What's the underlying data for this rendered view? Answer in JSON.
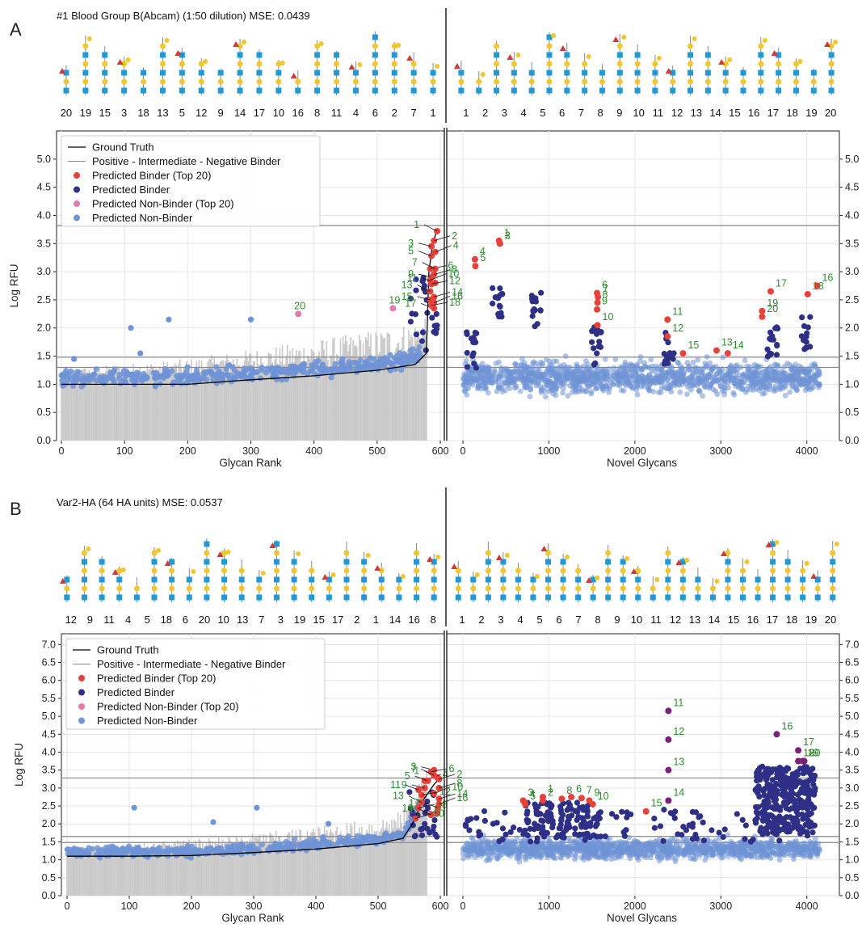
{
  "panels": [
    {
      "letter": "A",
      "title": "#1 Blood Group B(Abcam) (1:50 dilution) MSE: 0.0439",
      "left_glycan_labels": [
        "20",
        "19",
        "15",
        "3",
        "18",
        "13",
        "5",
        "12",
        "9",
        "14",
        "17",
        "10",
        "16",
        "8",
        "11",
        "4",
        "6",
        "2",
        "7",
        "1"
      ],
      "right_glycan_labels": [
        "1",
        "2",
        "3",
        "4",
        "5",
        "6",
        "7",
        "8",
        "9",
        "10",
        "11",
        "12",
        "13",
        "14",
        "15",
        "16",
        "17",
        "18",
        "19",
        "20"
      ]
    },
    {
      "letter": "B",
      "title": "Var2-HA (64 HA units) MSE: 0.0537",
      "left_glycan_labels": [
        "12",
        "9",
        "11",
        "4",
        "5",
        "18",
        "6",
        "20",
        "10",
        "13",
        "7",
        "3",
        "19",
        "15",
        "17",
        "2",
        "1",
        "14",
        "16",
        "8"
      ],
      "right_glycan_labels": [
        "1",
        "2",
        "3",
        "4",
        "5",
        "6",
        "7",
        "8",
        "9",
        "10",
        "11",
        "12",
        "13",
        "14",
        "15",
        "16",
        "17",
        "18",
        "19",
        "20"
      ]
    }
  ],
  "legend": {
    "ground_truth": "Ground Truth",
    "threshold": "Positive - Intermediate - Negative Binder",
    "pred_binder_top": "Predicted Binder (Top 20)",
    "pred_binder": "Predicted Binder",
    "pred_nonbinder_top": "Predicted Non-Binder (Top 20)",
    "pred_nonbinder": "Predicted Non-Binder"
  },
  "colors": {
    "ground_truth": "#000000",
    "threshold": "#888888",
    "pred_binder_top": "#e8413a",
    "pred_binder": "#2e2f86",
    "pred_nonbinder_top": "#e67ab0",
    "pred_nonbinder": "#6f93d6",
    "bar": "#c9c9c9",
    "annotation": "#2e8b2e",
    "purple_point": "#7a1f7a"
  },
  "chart_data": [
    {
      "type": "scatter",
      "panel": "A",
      "ylabel": "Log RFU",
      "left": {
        "xlabel": "Glycan Rank",
        "xlim": [
          0,
          600
        ],
        "xticks": [
          0,
          100,
          200,
          300,
          400,
          500,
          600
        ],
        "ylim": [
          0,
          5.5
        ],
        "yticks": [
          0.0,
          0.5,
          1.0,
          1.5,
          2.0,
          2.5,
          3.0,
          3.5,
          4.0,
          4.5,
          5.0
        ],
        "thresholds": [
          1.3,
          1.48,
          3.82
        ],
        "ground_truth_curve": [
          [
            0,
            1.0
          ],
          [
            100,
            1.0
          ],
          [
            200,
            1.0
          ],
          [
            300,
            1.08
          ],
          [
            400,
            1.15
          ],
          [
            500,
            1.25
          ],
          [
            560,
            1.35
          ],
          [
            578,
            1.55
          ],
          [
            582,
            3.0
          ],
          [
            588,
            3.5
          ],
          [
            595,
            3.75
          ]
        ],
        "outliers_nonbinder": [
          [
            110,
            2.0
          ],
          [
            170,
            2.15
          ],
          [
            300,
            2.15
          ],
          [
            125,
            1.55
          ],
          [
            20,
            1.45
          ]
        ],
        "top20_binders": [
          {
            "label": "1",
            "x": 595,
            "y": 3.72
          },
          {
            "label": "2",
            "x": 590,
            "y": 3.55
          },
          {
            "label": "3",
            "x": 586,
            "y": 3.45
          },
          {
            "label": "4",
            "x": 592,
            "y": 3.35
          },
          {
            "label": "5",
            "x": 586,
            "y": 3.28
          },
          {
            "label": "6",
            "x": 584,
            "y": 3.05
          },
          {
            "label": "7",
            "x": 592,
            "y": 3.05
          },
          {
            "label": "8",
            "x": 590,
            "y": 2.95
          },
          {
            "label": "9",
            "x": 586,
            "y": 2.9
          },
          {
            "label": "10",
            "x": 584,
            "y": 2.85
          },
          {
            "label": "11",
            "x": 592,
            "y": 2.8
          },
          {
            "label": "12",
            "x": 586,
            "y": 2.78
          },
          {
            "label": "13",
            "x": 584,
            "y": 2.65
          },
          {
            "label": "14",
            "x": 590,
            "y": 2.55
          },
          {
            "label": "15",
            "x": 584,
            "y": 2.5
          },
          {
            "label": "16",
            "x": 590,
            "y": 2.45
          },
          {
            "label": "17",
            "x": 590,
            "y": 2.35
          },
          {
            "label": "18",
            "x": 586,
            "y": 2.4
          }
        ],
        "top20_nonbinders": [
          {
            "label": "19",
            "x": 525,
            "y": 2.35
          },
          {
            "label": "20",
            "x": 375,
            "y": 2.25
          }
        ]
      },
      "right": {
        "xlabel": "Novel Glycans",
        "xlim": [
          0,
          4200
        ],
        "xticks": [
          0,
          1000,
          2000,
          3000,
          4000
        ],
        "ylim": [
          0,
          5.5
        ],
        "thresholds": [
          1.3,
          1.48,
          3.82
        ],
        "top20_binders": [
          {
            "label": "1",
            "x": 420,
            "y": 3.55
          },
          {
            "label": "2",
            "x": 430,
            "y": 3.5
          },
          {
            "label": "3",
            "x": 430,
            "y": 3.5
          },
          {
            "label": "4",
            "x": 140,
            "y": 3.22
          },
          {
            "label": "5",
            "x": 145,
            "y": 3.1
          },
          {
            "label": "6",
            "x": 1560,
            "y": 2.62
          },
          {
            "label": "7",
            "x": 1570,
            "y": 2.55
          },
          {
            "label": "8",
            "x": 1565,
            "y": 2.45
          },
          {
            "label": "9",
            "x": 1560,
            "y": 2.33
          },
          {
            "label": "10",
            "x": 1565,
            "y": 2.05
          },
          {
            "label": "11",
            "x": 2380,
            "y": 2.15
          },
          {
            "label": "12",
            "x": 2380,
            "y": 1.85
          },
          {
            "label": "13",
            "x": 2950,
            "y": 1.6
          },
          {
            "label": "14",
            "x": 3080,
            "y": 1.55
          },
          {
            "label": "15",
            "x": 2560,
            "y": 1.55
          },
          {
            "label": "16",
            "x": 4120,
            "y": 2.75
          },
          {
            "label": "17",
            "x": 3580,
            "y": 2.65
          },
          {
            "label": "18",
            "x": 4010,
            "y": 2.6
          },
          {
            "label": "19",
            "x": 3480,
            "y": 2.3
          },
          {
            "label": "20",
            "x": 3480,
            "y": 2.2
          }
        ]
      }
    },
    {
      "type": "scatter",
      "panel": "B",
      "ylabel": "Log RFU",
      "left": {
        "xlabel": "Glycan Rank",
        "xlim": [
          0,
          600
        ],
        "xticks": [
          0,
          100,
          200,
          300,
          400,
          500,
          600
        ],
        "ylim": [
          0,
          7.3
        ],
        "yticks": [
          0.0,
          0.5,
          1.0,
          1.5,
          2.0,
          2.5,
          3.0,
          3.5,
          4.0,
          4.5,
          5.0,
          5.5,
          6.0,
          6.5,
          7.0
        ],
        "thresholds": [
          1.48,
          1.65,
          3.28
        ],
        "ground_truth_curve": [
          [
            0,
            1.1
          ],
          [
            100,
            1.1
          ],
          [
            200,
            1.12
          ],
          [
            300,
            1.2
          ],
          [
            400,
            1.3
          ],
          [
            500,
            1.45
          ],
          [
            540,
            1.6
          ],
          [
            555,
            2.0
          ],
          [
            570,
            2.6
          ],
          [
            590,
            3.1
          ],
          [
            600,
            3.3
          ]
        ],
        "outliers_nonbinder": [
          [
            108,
            2.45
          ],
          [
            235,
            2.05
          ],
          [
            305,
            2.45
          ],
          [
            420,
            2.0
          ]
        ],
        "top20_binders": [
          {
            "label": "1",
            "x": 595,
            "y": 3.3
          },
          {
            "label": "2",
            "x": 598,
            "y": 3.25
          },
          {
            "label": "3",
            "x": 590,
            "y": 3.5
          },
          {
            "label": "4",
            "x": 575,
            "y": 3.2
          },
          {
            "label": "5",
            "x": 580,
            "y": 3.2
          },
          {
            "label": "6",
            "x": 585,
            "y": 3.45
          },
          {
            "label": "7",
            "x": 590,
            "y": 3.35
          },
          {
            "label": "8",
            "x": 598,
            "y": 3.0
          },
          {
            "label": "9",
            "x": 575,
            "y": 3.0
          },
          {
            "label": "10",
            "x": 590,
            "y": 2.85
          },
          {
            "label": "11",
            "x": 565,
            "y": 2.95
          },
          {
            "label": "12",
            "x": 570,
            "y": 2.8
          },
          {
            "label": "13",
            "x": 570,
            "y": 2.6
          },
          {
            "label": "14",
            "x": 598,
            "y": 2.7
          },
          {
            "label": "15",
            "x": 595,
            "y": 2.3
          },
          {
            "label": "16",
            "x": 598,
            "y": 2.55
          },
          {
            "label": "17",
            "x": 596,
            "y": 2.45
          },
          {
            "label": "18",
            "x": 565,
            "y": 2.45
          },
          {
            "label": "19",
            "x": 585,
            "y": 2.25
          },
          {
            "label": "20",
            "x": 560,
            "y": 2.15
          }
        ]
      },
      "right": {
        "xlabel": "Novel Glycans",
        "xlim": [
          0,
          4200
        ],
        "xticks": [
          0,
          1000,
          2000,
          3000,
          4000
        ],
        "ylim": [
          0,
          7.3
        ],
        "thresholds": [
          1.48,
          1.65,
          3.28
        ],
        "top20_binders": [
          {
            "label": "1",
            "x": 930,
            "y": 2.75
          },
          {
            "label": "2",
            "x": 930,
            "y": 2.65
          },
          {
            "label": "3",
            "x": 700,
            "y": 2.65
          },
          {
            "label": "4",
            "x": 720,
            "y": 2.6
          },
          {
            "label": "5",
            "x": 725,
            "y": 2.55
          },
          {
            "label": "6",
            "x": 1260,
            "y": 2.75
          },
          {
            "label": "7",
            "x": 1380,
            "y": 2.72
          },
          {
            "label": "8",
            "x": 1150,
            "y": 2.7
          },
          {
            "label": "9",
            "x": 1470,
            "y": 2.65
          },
          {
            "label": "10",
            "x": 1510,
            "y": 2.55
          },
          {
            "label": "11",
            "x": 2390,
            "y": 5.15
          },
          {
            "label": "12",
            "x": 2390,
            "y": 4.35
          },
          {
            "label": "13",
            "x": 2390,
            "y": 3.5
          },
          {
            "label": "14",
            "x": 2390,
            "y": 2.65
          },
          {
            "label": "15",
            "x": 2130,
            "y": 2.35
          },
          {
            "label": "16",
            "x": 3650,
            "y": 4.5
          },
          {
            "label": "17",
            "x": 3900,
            "y": 4.05
          },
          {
            "label": "18",
            "x": 3900,
            "y": 3.75
          },
          {
            "label": "19",
            "x": 3950,
            "y": 3.75
          },
          {
            "label": "20",
            "x": 3970,
            "y": 3.75
          }
        ]
      }
    }
  ]
}
